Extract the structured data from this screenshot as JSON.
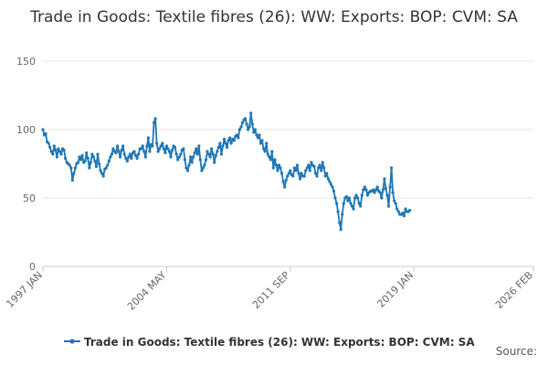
{
  "title": "Trade in Goods: Textile fibres (26): WW: Exports: BOP: CVM: SA",
  "source_label": "Source:",
  "colors": {
    "series": "#1f77b4",
    "grid": "#e6e6e6",
    "axis": "#cccccc",
    "text": "#666666"
  },
  "chart_data": {
    "type": "line",
    "title": "Trade in Goods: Textile fibres (26): WW: Exports: BOP: CVM: SA",
    "xlabel": "",
    "ylabel": "",
    "ylim": [
      0,
      150
    ],
    "yticks": [
      0,
      50,
      100,
      150
    ],
    "xlim": [
      "1997-01",
      "2026-02"
    ],
    "xticks": [
      "1997 JAN",
      "2004 MAY",
      "2011 SEP",
      "2019 JAN",
      "2026 FEB"
    ],
    "grid": true,
    "legend_position": "bottom",
    "series": [
      {
        "name": "Trade in Goods: Textile fibres (26): WW: Exports: BOP: CVM: SA",
        "frequency": "monthly",
        "start": "1997-01",
        "values": [
          100,
          96,
          97,
          91,
          90,
          87,
          84,
          82,
          88,
          85,
          80,
          86,
          84,
          82,
          86,
          85,
          79,
          76,
          75,
          74,
          72,
          63,
          68,
          72,
          75,
          76,
          80,
          78,
          81,
          76,
          77,
          83,
          79,
          72,
          76,
          82,
          80,
          77,
          73,
          82,
          75,
          70,
          68,
          66,
          71,
          72,
          74,
          77,
          80,
          82,
          86,
          84,
          83,
          88,
          84,
          80,
          85,
          88,
          82,
          79,
          77,
          80,
          82,
          79,
          83,
          84,
          81,
          79,
          82,
          86,
          86,
          88,
          84,
          80,
          88,
          94,
          84,
          89,
          88,
          105,
          108,
          90,
          84,
          86,
          88,
          90,
          86,
          83,
          88,
          86,
          84,
          80,
          85,
          88,
          87,
          82,
          78,
          80,
          82,
          85,
          86,
          78,
          72,
          70,
          74,
          80,
          76,
          80,
          83,
          86,
          82,
          88,
          78,
          70,
          72,
          74,
          78,
          84,
          82,
          80,
          86,
          82,
          76,
          81,
          84,
          87,
          90,
          82,
          88,
          93,
          90,
          87,
          92,
          94,
          90,
          93,
          92,
          95,
          96,
          94,
          100,
          102,
          105,
          107,
          108,
          104,
          100,
          102,
          112,
          104,
          98,
          100,
          96,
          94,
          96,
          90,
          92,
          86,
          84,
          90,
          82,
          80,
          78,
          84,
          72,
          78,
          74,
          70,
          74,
          72,
          68,
          62,
          58,
          63,
          66,
          68,
          70,
          67,
          66,
          72,
          70,
          74,
          68,
          64,
          68,
          66,
          66,
          70,
          72,
          74,
          70,
          76,
          74,
          73,
          68,
          66,
          72,
          74,
          70,
          76,
          72,
          66,
          68,
          64,
          62,
          60,
          58,
          55,
          50,
          46,
          40,
          32,
          27,
          38,
          46,
          50,
          51,
          48,
          50,
          46,
          44,
          42,
          50,
          52,
          50,
          46,
          44,
          52,
          56,
          58,
          56,
          52,
          54,
          55,
          55,
          56,
          54,
          56,
          58,
          55,
          54,
          50,
          56,
          64,
          57,
          52,
          44,
          58,
          72,
          54,
          48,
          46,
          42,
          40,
          38,
          38,
          39,
          37,
          42,
          40,
          40,
          41
        ]
      }
    ]
  }
}
